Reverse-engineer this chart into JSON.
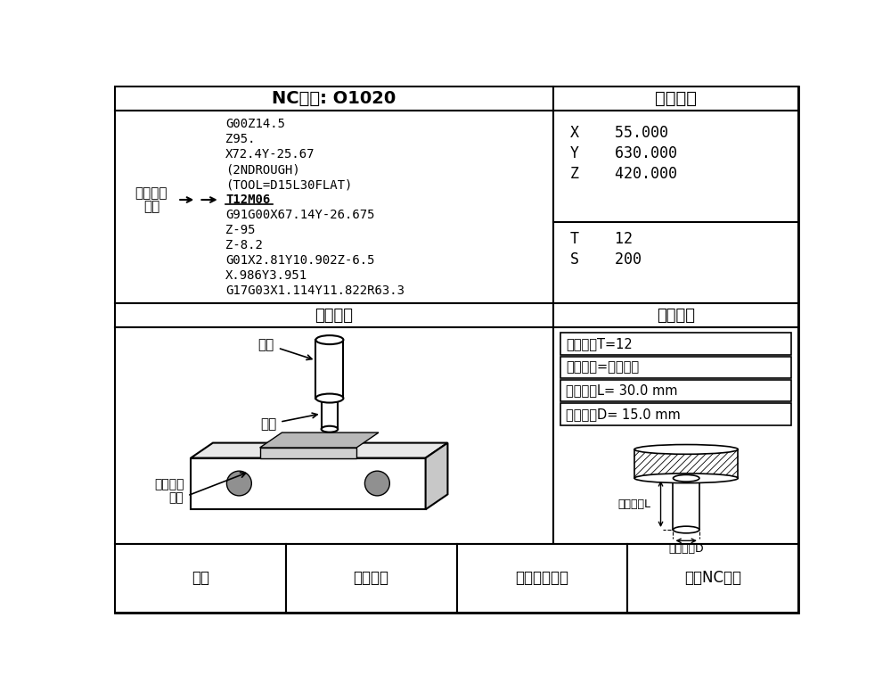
{
  "title_nc": "NC程序: O1020",
  "title_abs": "绝对坐标",
  "title_sim": "加工模拟",
  "title_tool": "刀具数据",
  "nc_lines": [
    "G00Z14.5",
    "Z95.",
    "X72.4Y-25.67",
    "(2NDROUGH)",
    "(TOOL=D15L30FLAT)",
    "T12M06",
    "G91G00X67.14Y-26.675",
    "Z-95",
    "Z-8.2",
    "G01X2.81Y10.902Z-6.5",
    "X.986Y3.951",
    "G17G03X1.114Y11.822R63.3"
  ],
  "t12m06_index": 5,
  "abs_coords": [
    "X    55.000",
    "Y    630.000",
    "Z    420.000"
  ],
  "ts_values": [
    "T    12",
    "S    200"
  ],
  "tool_data": [
    "刀具编号T=12",
    "刀具形状=平面铣刀",
    "刀具长度L= 30.0 mm",
    "刀具宽度D= 15.0 mm"
  ],
  "left_label1": "刀具更换",
  "left_label2": "指令",
  "bottom_buttons": [
    "执行",
    "刀具检查",
    "编辑刀具数据",
    "编辑NC数据"
  ],
  "bg_color": "#ffffff",
  "border_color": "#000000"
}
